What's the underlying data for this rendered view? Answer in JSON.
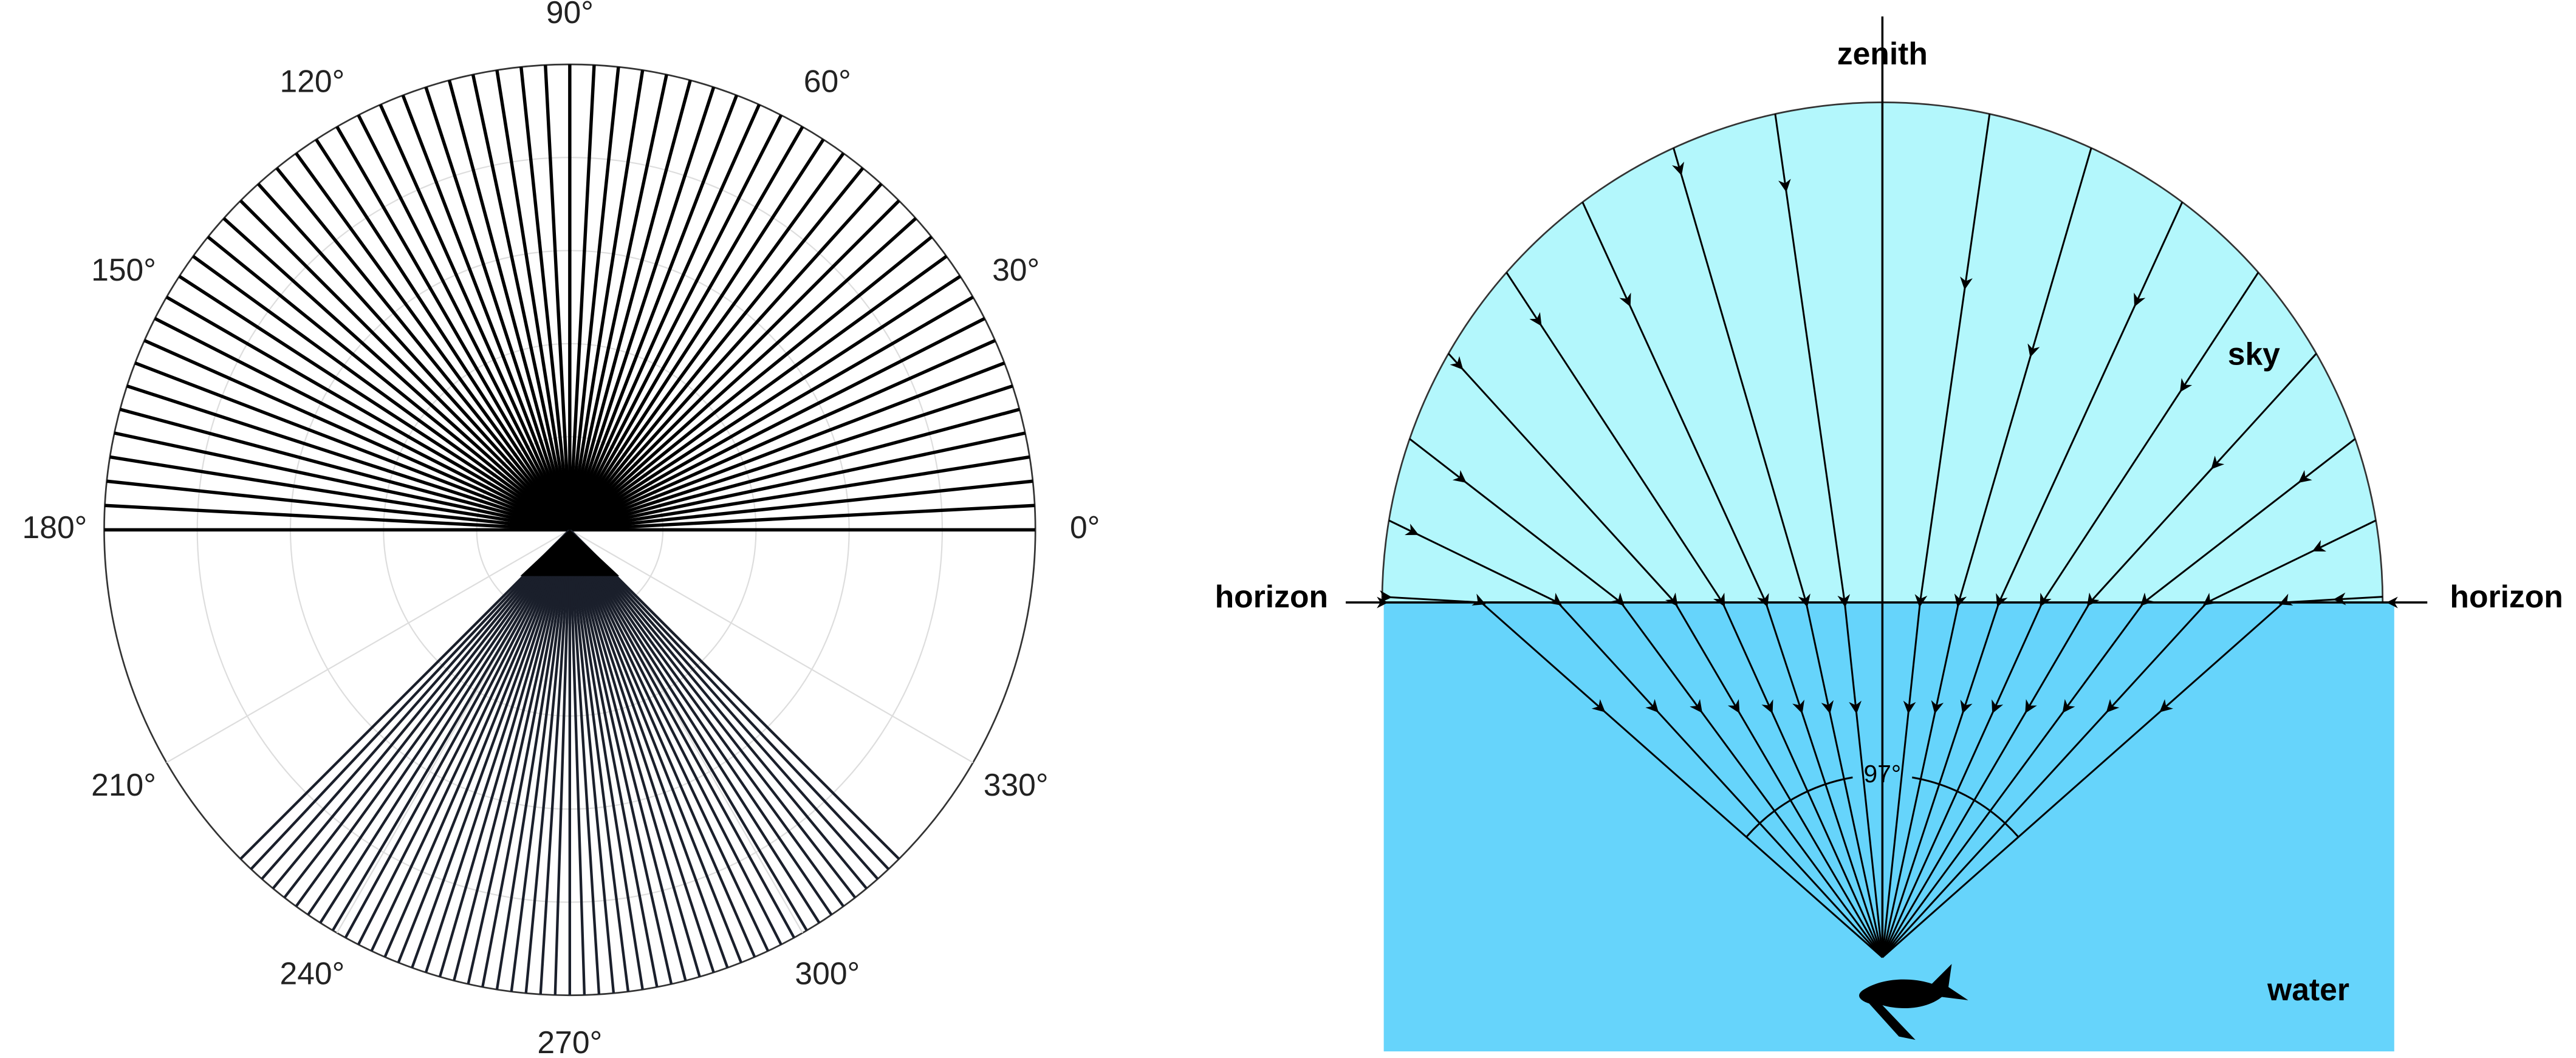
{
  "polar_plot": {
    "angle_labels": [
      "0°",
      "30°",
      "60°",
      "90°",
      "120°",
      "150°",
      "180°",
      "210°",
      "240°",
      "270°",
      "300°",
      "330°"
    ]
  },
  "snell_window": {
    "zenith": "zenith",
    "sky": "sky",
    "horizon_left": "horizon",
    "horizon_right": "horizon",
    "water": "water",
    "angle": "97°"
  }
}
